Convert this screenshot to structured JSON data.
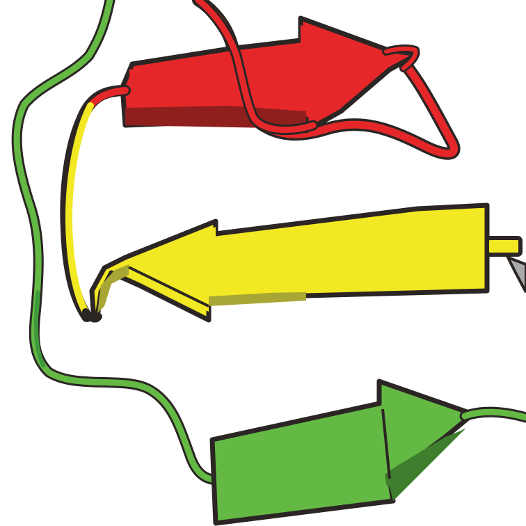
{
  "figure": {
    "kind": "protein-ribbon",
    "strands": [
      {
        "id": "strand-red",
        "color": "#e5272a",
        "shade": "#8e1f1c",
        "direction": "right"
      },
      {
        "id": "strand-yellow",
        "color": "#f2e823",
        "shade": "#a8a635",
        "direction": "left"
      },
      {
        "id": "strand-green",
        "color": "#63b944",
        "shade": "#3e7e2c",
        "direction": "right"
      }
    ],
    "coil_colors": {
      "green": "#63b944",
      "dark_green": "#3e9a3a",
      "yellow": "#f2e823",
      "red": "#e5272a",
      "outline": "#2b2523",
      "gray": "#a9a9a9"
    }
  }
}
